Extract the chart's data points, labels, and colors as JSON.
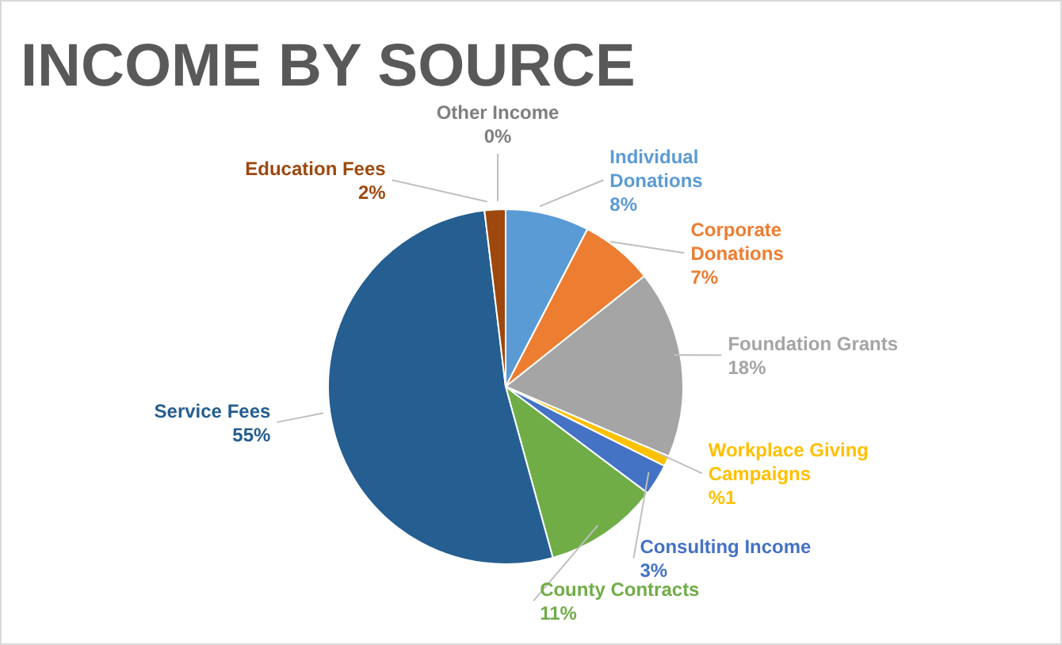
{
  "chart_data": {
    "type": "pie",
    "title": "INCOME BY SOURCE",
    "categories": [
      "Other Income",
      "Individual Donations",
      "Corporate Donations",
      "Foundation Grants",
      "Workplace Giving Campaigns",
      "Consulting Income",
      "County Contracts",
      "Service Fees",
      "Education Fees"
    ],
    "values": [
      0,
      8,
      7,
      18,
      1,
      3,
      11,
      55,
      2
    ],
    "value_labels": [
      "0%",
      "8%",
      "7%",
      "18%",
      "%1",
      "3%",
      "11%",
      "55%",
      "2%"
    ],
    "colors": [
      "#7f7f7f",
      "#5b9bd5",
      "#ed7d31",
      "#a5a5a5",
      "#ffc000",
      "#4472c4",
      "#70ad47",
      "#255e91",
      "#9e480e"
    ]
  }
}
